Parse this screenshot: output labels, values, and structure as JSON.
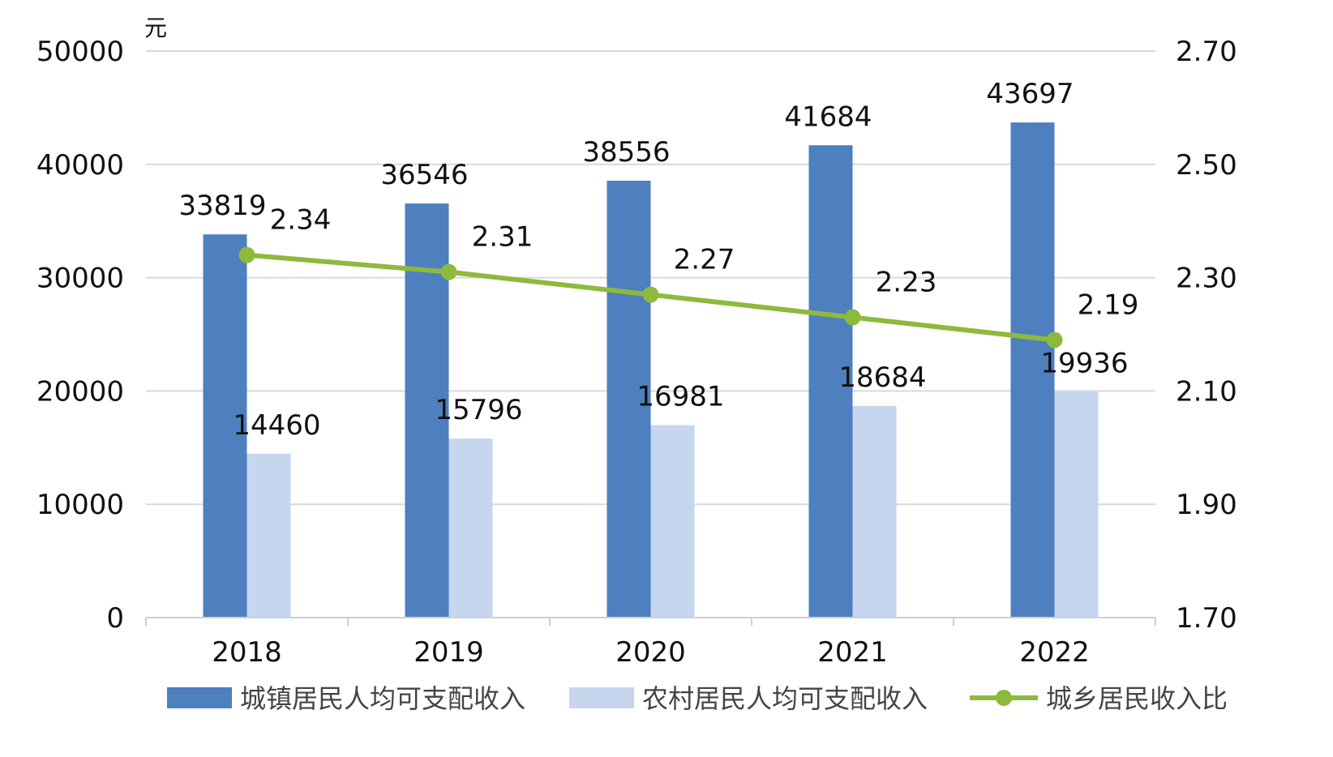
{
  "chart_data": {
    "type": "bar",
    "unit_label": "元",
    "categories": [
      "2018",
      "2019",
      "2020",
      "2021",
      "2022"
    ],
    "series": [
      {
        "name": "城镇居民人均可支配收入",
        "kind": "bar",
        "axis": "left",
        "color": "#4E7FBF",
        "values": [
          33819,
          36546,
          38556,
          41684,
          43697
        ]
      },
      {
        "name": "农村居民人均可支配收入",
        "kind": "bar",
        "axis": "left",
        "color": "#C6D6EE",
        "values": [
          14460,
          15796,
          16981,
          18684,
          19936
        ]
      },
      {
        "name": "城乡居民收入比",
        "kind": "line",
        "axis": "right",
        "color": "#8DBA3D",
        "values": [
          2.34,
          2.31,
          2.27,
          2.23,
          2.19
        ]
      }
    ],
    "y_left": {
      "min": 0,
      "max": 50000,
      "ticks": [
        "0",
        "10000",
        "20000",
        "30000",
        "40000",
        "50000"
      ]
    },
    "y_right": {
      "min": 1.7,
      "max": 2.7,
      "ticks": [
        "1.70",
        "1.90",
        "2.10",
        "2.30",
        "2.50",
        "2.70"
      ]
    },
    "grid": true,
    "legend_position": "bottom"
  }
}
